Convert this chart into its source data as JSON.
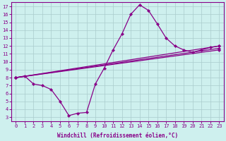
{
  "xlabel": "Windchill (Refroidissement éolien,°C)",
  "background_color": "#cef0ee",
  "grid_color": "#aacccc",
  "line_color": "#880088",
  "xlim": [
    -0.5,
    23.5
  ],
  "ylim": [
    2.5,
    17.5
  ],
  "xticks": [
    0,
    1,
    2,
    3,
    4,
    5,
    6,
    7,
    8,
    9,
    10,
    11,
    12,
    13,
    14,
    15,
    16,
    17,
    18,
    19,
    20,
    21,
    22,
    23
  ],
  "yticks": [
    3,
    4,
    5,
    6,
    7,
    8,
    9,
    10,
    11,
    12,
    13,
    14,
    15,
    16,
    17
  ],
  "main_x": [
    0,
    1,
    2,
    3,
    4,
    5,
    6,
    7,
    8,
    9,
    10,
    11,
    12,
    13,
    14,
    15,
    16,
    17,
    18,
    19,
    20,
    21,
    22,
    23
  ],
  "main_y": [
    8.0,
    8.2,
    7.2,
    7.0,
    6.5,
    5.0,
    3.2,
    3.5,
    3.6,
    7.2,
    9.2,
    11.5,
    13.5,
    16.0,
    17.2,
    16.5,
    14.8,
    13.0,
    12.0,
    11.5,
    11.2,
    11.5,
    11.8,
    12.0
  ],
  "straight_lines": [
    {
      "x": [
        0,
        23
      ],
      "y": [
        8.0,
        12.0
      ]
    },
    {
      "x": [
        0,
        23
      ],
      "y": [
        8.0,
        11.7
      ]
    },
    {
      "x": [
        0,
        23
      ],
      "y": [
        8.0,
        11.5
      ]
    }
  ],
  "tick_fontsize": 5,
  "xlabel_fontsize": 5.5
}
